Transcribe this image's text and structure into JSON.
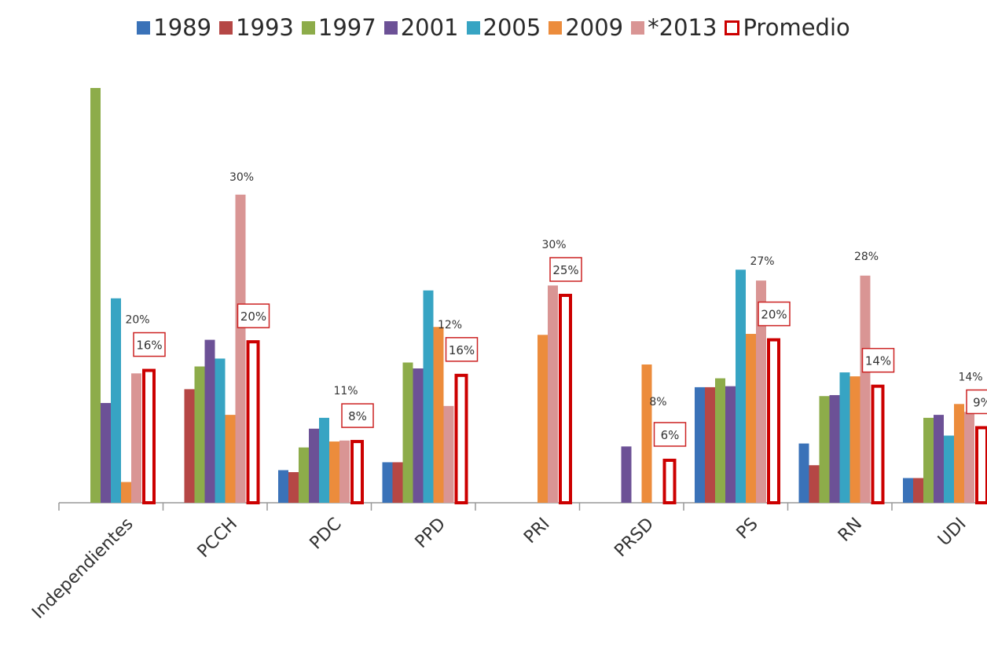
{
  "chart_data": {
    "type": "bar",
    "title": "",
    "xlabel": "",
    "ylabel": "",
    "ylim": [
      0,
      42
    ],
    "categories": [
      "Independientes",
      "PCCH",
      "PDC",
      "PPD",
      "PRI",
      "PRSD",
      "PS",
      "RN",
      "UDI"
    ],
    "series": [
      {
        "name": "1989",
        "color": "#3a72b8",
        "values": [
          null,
          null,
          3.3,
          4.1,
          null,
          null,
          11.7,
          6.0,
          2.5
        ]
      },
      {
        "name": "1993",
        "color": "#b54745",
        "values": [
          null,
          11.5,
          3.1,
          4.1,
          null,
          null,
          11.7,
          3.8,
          2.5
        ]
      },
      {
        "name": "1997",
        "color": "#8dac4a",
        "values": [
          42,
          13.8,
          5.6,
          14.2,
          null,
          null,
          12.6,
          10.8,
          8.6
        ]
      },
      {
        "name": "2001",
        "color": "#6c5196",
        "values": [
          10.1,
          16.5,
          7.5,
          13.6,
          null,
          5.7,
          11.8,
          10.9,
          8.9
        ]
      },
      {
        "name": "2005",
        "color": "#37a4c3",
        "values": [
          20.7,
          14.6,
          8.6,
          21.5,
          null,
          null,
          23.6,
          13.2,
          6.8
        ]
      },
      {
        "name": "2009",
        "color": "#ec8c3c",
        "values": [
          2.1,
          8.9,
          6.2,
          17.8,
          17.0,
          14.0,
          17.1,
          12.8,
          10.0
        ]
      },
      {
        "name": "*2013",
        "color": "#d99594",
        "values": [
          13.1,
          31.2,
          6.3,
          9.8,
          22.0,
          null,
          22.5,
          23.0,
          9.2
        ]
      }
    ],
    "average": {
      "name": "Promedio",
      "color": "#cc0000",
      "values": [
        13.4,
        16.3,
        6.2,
        12.9,
        21.0,
        4.3,
        16.5,
        11.8,
        7.6
      ]
    },
    "annotations": [
      {
        "category": "Independientes",
        "text": "20%",
        "boxed": false
      },
      {
        "category": "Independientes",
        "text": "16%",
        "boxed": true
      },
      {
        "category": "PCCH",
        "text": "30%",
        "boxed": false
      },
      {
        "category": "PCCH",
        "text": "20%",
        "boxed": true
      },
      {
        "category": "PDC",
        "text": "11%",
        "boxed": false
      },
      {
        "category": "PDC",
        "text": "8%",
        "boxed": true
      },
      {
        "category": "PPD",
        "text": "12%",
        "boxed": false
      },
      {
        "category": "PPD",
        "text": "16%",
        "boxed": true
      },
      {
        "category": "PRI",
        "text": "30%",
        "boxed": false
      },
      {
        "category": "PRI",
        "text": "25%",
        "boxed": true
      },
      {
        "category": "PRSD",
        "text": "8%",
        "boxed": false
      },
      {
        "category": "PRSD",
        "text": "6%",
        "boxed": true
      },
      {
        "category": "PS",
        "text": "27%",
        "boxed": false
      },
      {
        "category": "PS",
        "text": "20%",
        "boxed": true
      },
      {
        "category": "RN",
        "text": "28%",
        "boxed": false
      },
      {
        "category": "RN",
        "text": "14%",
        "boxed": true
      },
      {
        "category": "UDI",
        "text": "14%",
        "boxed": false
      },
      {
        "category": "UDI",
        "text": "9%",
        "boxed": true
      }
    ],
    "legend_position": "top",
    "grid": false
  }
}
